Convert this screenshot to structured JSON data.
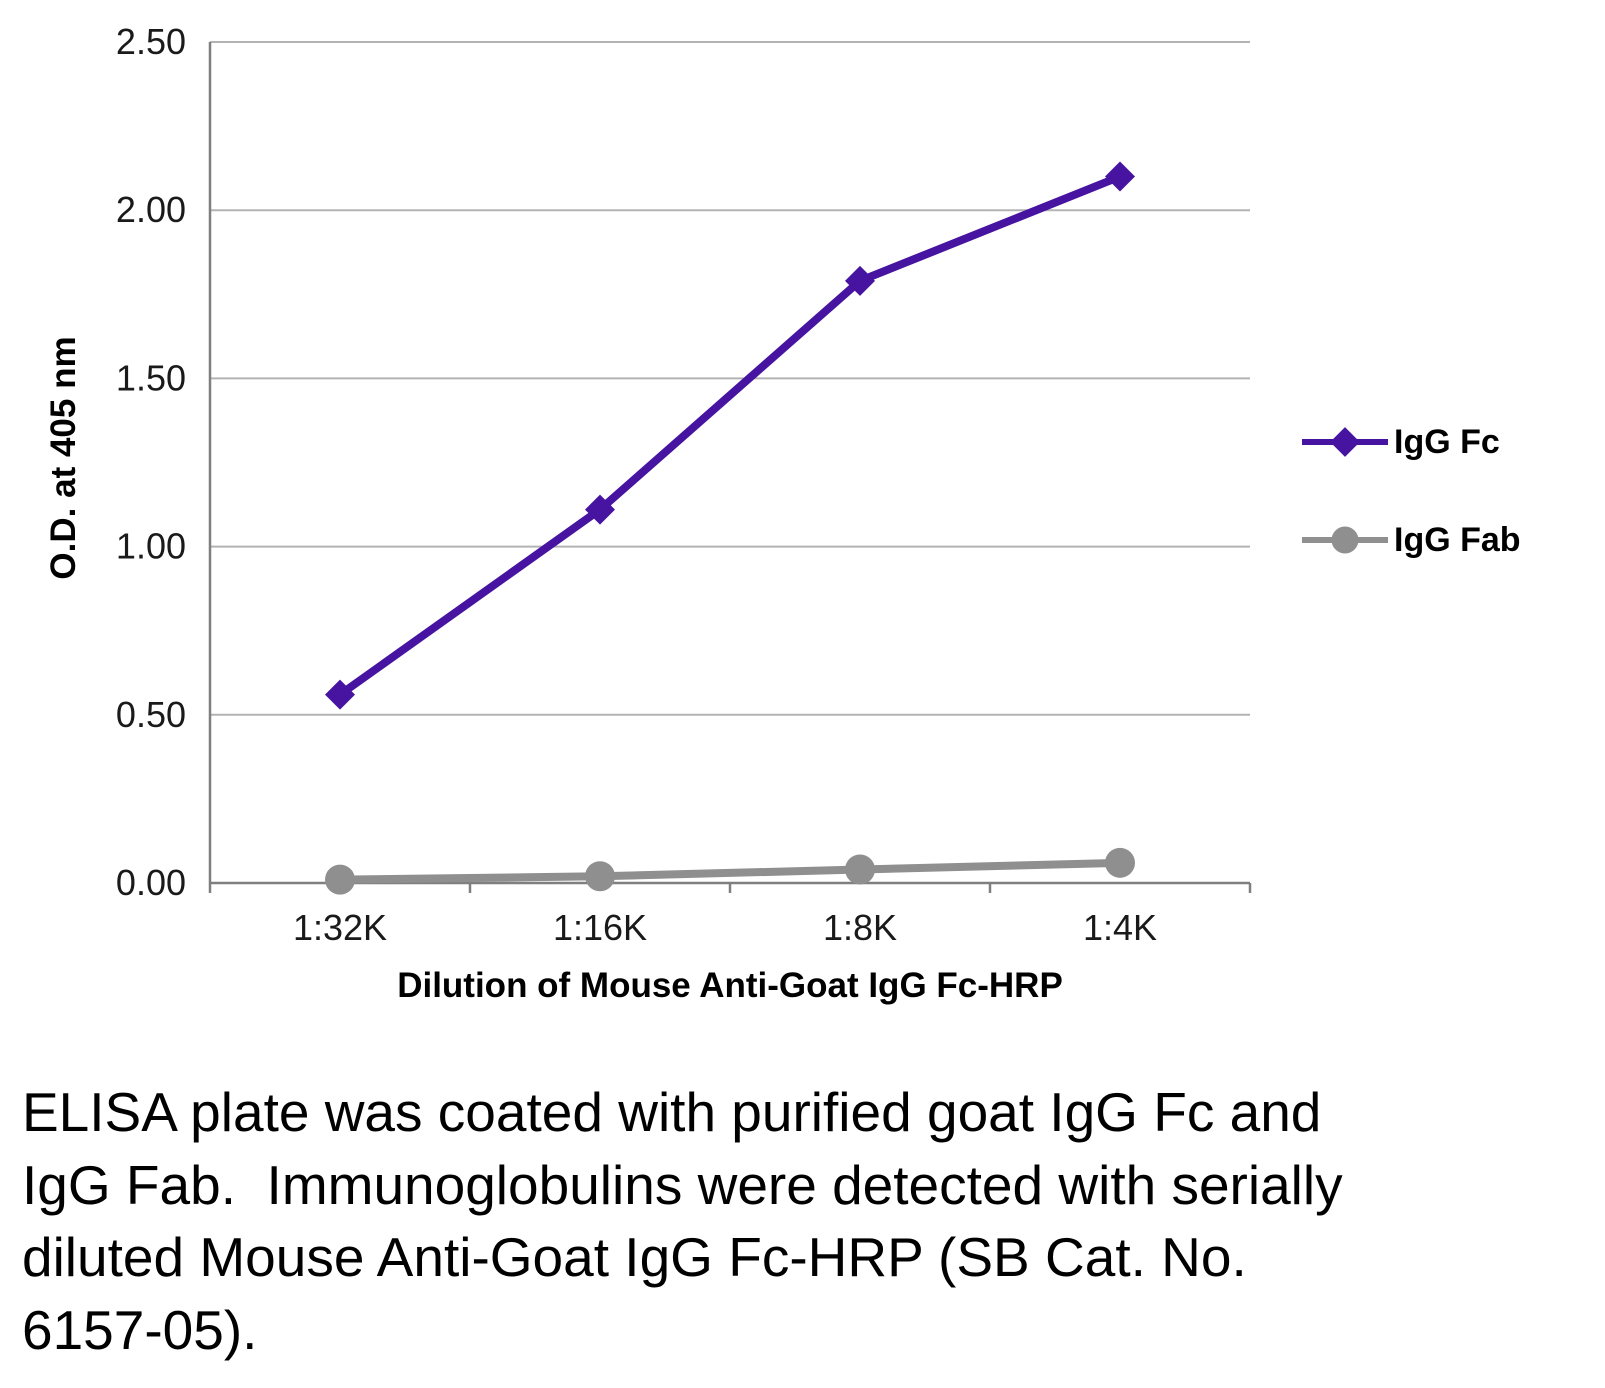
{
  "chart_data": {
    "type": "line",
    "categories": [
      "1:32K",
      "1:16K",
      "1:8K",
      "1:4K"
    ],
    "series": [
      {
        "name": "IgG Fc",
        "marker": "diamond",
        "color": "#4614A0",
        "values": [
          0.56,
          1.11,
          1.79,
          2.1
        ]
      },
      {
        "name": "IgG Fab",
        "marker": "circle",
        "color": "#8F8F8F",
        "values": [
          0.01,
          0.02,
          0.04,
          0.06
        ]
      }
    ],
    "title": "",
    "xlabel": "Dilution of Mouse Anti-Goat IgG Fc-HRP",
    "ylabel": "O.D. at 405 nm",
    "ylim": [
      0,
      2.5
    ],
    "ytick_step": 0.5,
    "ytick_labels": [
      "0.00",
      "0.50",
      "1.00",
      "1.50",
      "2.00",
      "2.50"
    ],
    "grid": true,
    "legend_position": "right",
    "colors": {
      "grid": "#b3b3b3",
      "axis": "#7f7f7f",
      "tick_text": "#1a1a1a"
    }
  },
  "caption": "ELISA plate was coated with purified goat IgG Fc and IgG Fab.  Immunoglobulins were detected with serially diluted Mouse Anti-Goat IgG Fc-HRP (SB Cat. No. 6157-05)."
}
